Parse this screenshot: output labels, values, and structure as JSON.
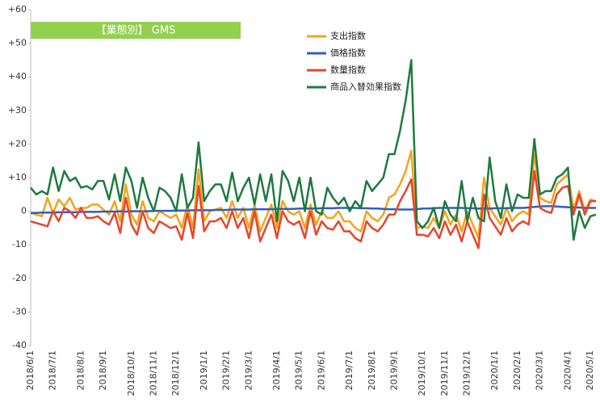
{
  "chart_data": {
    "type": "line",
    "title": "【業態別】 GMS",
    "categories": [
      "2018/6/1",
      null,
      null,
      null,
      "2018/7/1",
      null,
      null,
      null,
      null,
      "2018/8/1",
      null,
      null,
      null,
      "2018/9/1",
      null,
      null,
      null,
      null,
      "2018/10/1",
      null,
      null,
      null,
      "2018/11/1",
      null,
      null,
      null,
      "2018/12/1",
      null,
      null,
      null,
      null,
      "2019/1/1",
      null,
      null,
      null,
      "2019/2/1",
      null,
      null,
      null,
      "2019/3/1",
      null,
      null,
      null,
      null,
      "2019/4/1",
      null,
      null,
      null,
      "2019/5/1",
      null,
      null,
      null,
      "2019/6/1",
      null,
      null,
      null,
      null,
      "2019/7/1",
      null,
      null,
      null,
      "2019/8/1",
      null,
      null,
      null,
      "2019/9/1",
      null,
      null,
      null,
      null,
      "2019/10/1",
      null,
      null,
      null,
      "2019/11/1",
      null,
      null,
      null,
      "2019/12/1",
      null,
      null,
      null,
      null,
      "2020/1/1",
      null,
      null,
      null,
      "2020/2/1",
      null,
      null,
      null,
      "2020/3/1",
      null,
      null,
      null,
      null,
      "2020/4/1",
      null,
      null,
      null,
      "2020/5/1",
      null
    ],
    "series": [
      {
        "name": "支出指数",
        "color": "#f5a31a",
        "values": [
          -0.5,
          -1,
          -1.5,
          4,
          -0.5,
          3.5,
          1.5,
          4,
          0.5,
          1,
          1,
          2,
          2,
          0.5,
          -1,
          3,
          -3,
          8,
          -1,
          -4,
          3,
          -2,
          -3,
          0,
          -1,
          -2,
          -1,
          -5,
          2,
          -5,
          12.5,
          -3,
          0,
          0.5,
          1,
          -2,
          3,
          -2,
          1,
          -5,
          2,
          -6,
          -2,
          2,
          -5,
          3,
          0,
          -1,
          0,
          -5,
          2,
          -4,
          0,
          -2,
          -2,
          0,
          -3,
          -3,
          -5,
          -6,
          0,
          -2,
          -3,
          -1,
          4,
          5,
          8,
          12,
          18,
          -5,
          -4.5,
          -5,
          -2,
          -5,
          0,
          -4,
          -1,
          -6,
          0,
          -4,
          -8,
          10,
          1,
          -1.5,
          -4,
          1,
          -3,
          -1,
          0,
          -1,
          17,
          4,
          3,
          2.5,
          8,
          9.5,
          11,
          0.5,
          6,
          0,
          3.5,
          3
        ]
      },
      {
        "name": "価格指数",
        "color": "#2e5fc0",
        "values": [
          -0.5,
          -0.5,
          -0.4,
          -0.4,
          -0.4,
          -0.3,
          -0.3,
          -0.3,
          -0.3,
          -0.2,
          -0.2,
          -0.2,
          -0.2,
          -0.1,
          -0.1,
          -0.1,
          0,
          -0.1,
          0,
          0,
          0,
          0,
          0.1,
          0.1,
          0.1,
          0.1,
          0.2,
          0.2,
          0.2,
          0.3,
          0.3,
          0.3,
          0.3,
          0.4,
          0.4,
          0.4,
          0.5,
          0.5,
          0.5,
          0.5,
          0.6,
          0.6,
          0.6,
          0.6,
          0.7,
          0.7,
          0.7,
          0.7,
          0.8,
          0.8,
          0.8,
          0.8,
          0.9,
          0.9,
          0.9,
          1,
          1,
          1,
          1,
          0.9,
          0.9,
          0.8,
          0.8,
          0.7,
          0.6,
          0.6,
          0.5,
          0.5,
          0.5,
          0.6,
          0.8,
          0.8,
          0.9,
          1,
          1,
          1,
          1,
          1,
          0.9,
          0.9,
          0.8,
          0.8,
          0.8,
          0.9,
          0.9,
          0.9,
          1,
          1,
          1,
          1.1,
          1.3,
          1.4,
          1.5,
          1.5,
          1.4,
          1.3,
          1.2,
          1.1,
          1.1,
          1,
          1,
          1
        ]
      },
      {
        "name": "数量指数",
        "color": "#e8452c",
        "values": [
          -3,
          -3.5,
          -4,
          -4.5,
          0,
          -3,
          1,
          0,
          -2,
          1,
          -2,
          -2,
          -1.5,
          -3,
          -4,
          -0.5,
          -6.5,
          4,
          -4,
          -7,
          0,
          -5,
          -6.5,
          -3,
          -4,
          -5,
          -4.5,
          -8.5,
          -0.5,
          -8,
          7.5,
          -6,
          -3,
          -3,
          -2,
          -5,
          0,
          -5,
          -2,
          -8,
          0,
          -9,
          -5,
          -1,
          -8,
          0,
          -3,
          -4,
          -3,
          -8,
          0,
          -7,
          -3,
          -5,
          -5.5,
          -3,
          -6,
          -6,
          -8,
          -9,
          -3,
          -5,
          -6,
          -4,
          -1,
          -1,
          3,
          6,
          9.5,
          -7,
          -7,
          -7.5,
          -5,
          -8,
          -3,
          -7,
          -4,
          -9,
          -3,
          -7,
          -11,
          5,
          -2,
          -4.5,
          -7,
          -2,
          -6,
          -4,
          -3,
          -4,
          12,
          1,
          0,
          -0.5,
          5,
          7,
          7.5,
          -1,
          5,
          -1,
          3,
          3
        ]
      },
      {
        "name": "商品入替効果指数",
        "color": "#1f7a40",
        "values": [
          7,
          5,
          6,
          5,
          13,
          6,
          12,
          9,
          10,
          7,
          7.5,
          6.5,
          9,
          9,
          3.5,
          11,
          3,
          13,
          9,
          1,
          10,
          4,
          0,
          7,
          6,
          4,
          0,
          11,
          1,
          4,
          20.5,
          3,
          6,
          8,
          8,
          3,
          11.5,
          3,
          7,
          10,
          2,
          11,
          3,
          11,
          -3,
          12,
          9,
          3,
          10,
          0,
          10,
          0,
          -1,
          7,
          4,
          2,
          4,
          0,
          3,
          1,
          9,
          6,
          8,
          10,
          17,
          17,
          24,
          33,
          45,
          -3,
          -5,
          -3,
          1,
          -5,
          3,
          -1,
          -3,
          9,
          -3,
          4,
          -2,
          -3,
          16,
          3,
          -2,
          8,
          0,
          5,
          4,
          4,
          21.5,
          5,
          6,
          6,
          10,
          11,
          13,
          -8.5,
          0,
          -5,
          -1.5,
          -1
        ]
      }
    ],
    "ylim": [
      -40,
      60
    ],
    "yticks": [
      -40,
      -30,
      -20,
      -10,
      0,
      {
        "value": 10,
        "label": "+10"
      },
      {
        "value": 20,
        "label": "+20"
      },
      {
        "value": 30,
        "label": "+30"
      },
      {
        "value": 40,
        "label": "+40"
      },
      {
        "value": 50,
        "label": "+50"
      },
      {
        "value": 60,
        "label": "+60"
      }
    ],
    "grid": false
  }
}
